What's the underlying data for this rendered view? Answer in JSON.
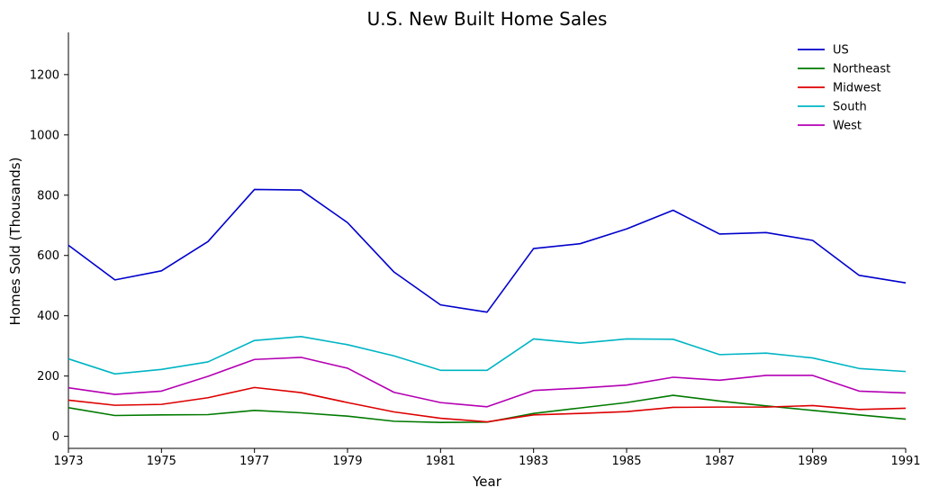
{
  "chart_data": {
    "type": "line",
    "title": "U.S. New Built Home Sales",
    "xlabel": "Year",
    "ylabel": "Homes Sold (Thousands)",
    "x": [
      1973,
      1974,
      1975,
      1976,
      1977,
      1978,
      1979,
      1980,
      1981,
      1982,
      1983,
      1984,
      1985,
      1986,
      1987,
      1988,
      1989,
      1990,
      1991
    ],
    "xlim": [
      1973,
      1991
    ],
    "ylim": [
      -40,
      1340
    ],
    "xticks": [
      1973,
      1975,
      1977,
      1979,
      1981,
      1983,
      1985,
      1987,
      1989,
      1991
    ],
    "yticks": [
      0,
      200,
      400,
      600,
      800,
      1000,
      1200
    ],
    "grid": false,
    "legend_position": "top-right",
    "series": [
      {
        "name": "US",
        "color": "#0000cc",
        "values": [
          634,
          519,
          549,
          646,
          819,
          817,
          709,
          545,
          436,
          412,
          623,
          639,
          688,
          750,
          671,
          676,
          650,
          534,
          509
        ]
      },
      {
        "name": "Northeast",
        "color": "#007a00",
        "values": [
          95,
          69,
          71,
          72,
          86,
          78,
          67,
          50,
          46,
          47,
          76,
          94,
          112,
          136,
          117,
          101,
          86,
          71,
          57
        ]
      },
      {
        "name": "Midwest",
        "color": "#dd0000",
        "values": [
          120,
          103,
          106,
          128,
          162,
          145,
          112,
          81,
          60,
          48,
          71,
          76,
          82,
          96,
          97,
          97,
          102,
          89,
          93
        ]
      },
      {
        "name": "South",
        "color": "#00b5c4",
        "values": [
          257,
          207,
          222,
          247,
          318,
          331,
          304,
          267,
          219,
          219,
          323,
          309,
          323,
          322,
          271,
          276,
          260,
          225,
          215
        ]
      },
      {
        "name": "West",
        "color": "#b400b4",
        "values": [
          161,
          139,
          150,
          199,
          255,
          262,
          226,
          146,
          112,
          98,
          152,
          160,
          170,
          196,
          186,
          202,
          202,
          150,
          144
        ]
      }
    ]
  }
}
